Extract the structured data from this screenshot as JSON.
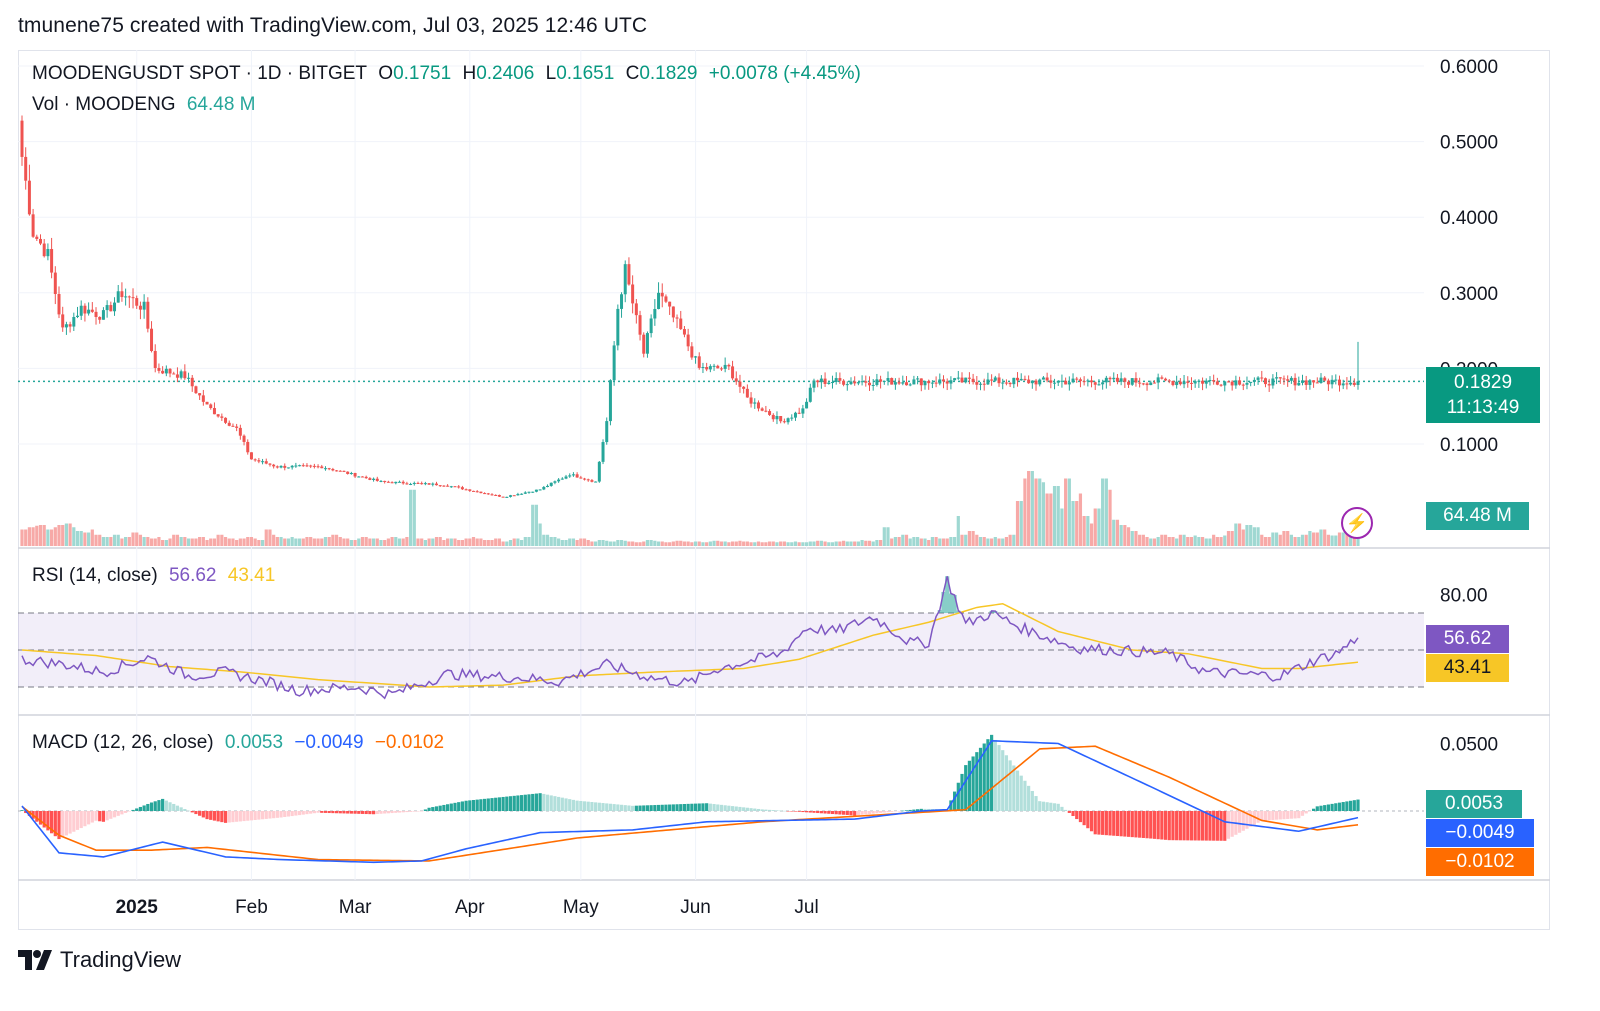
{
  "header": {
    "credit": "tmunene75 created with TradingView.com, Jul 03, 2025 12:46 UTC"
  },
  "brand": {
    "name": "TradingView"
  },
  "colors": {
    "up": "#26a69a",
    "down": "#ef5350",
    "rsi": "#7e57c2",
    "rsi_ma": "#f7c626",
    "macd": "#2962ff",
    "signal": "#ff6d00"
  },
  "price_legend": {
    "symbol": "MOODENGUSDT SPOT · 1D · BITGET",
    "o_label": "O",
    "o": "0.1751",
    "h_label": "H",
    "h": "0.2406",
    "l_label": "L",
    "l": "0.1651",
    "c_label": "C",
    "c": "0.1829",
    "change": "+0.0078 (+4.45%)"
  },
  "vol_legend": {
    "label": "Vol · MOODENG",
    "value": "64.48 M"
  },
  "rsi_legend": {
    "label": "RSI (14, close)",
    "rsi": "56.62",
    "ma": "43.41"
  },
  "macd_legend": {
    "label": "MACD (12, 26, close)",
    "hist": "0.0053",
    "macd": "−0.0049",
    "signal": "−0.0102"
  },
  "tags": {
    "price": "0.1829",
    "countdown": "11:13:49",
    "volume": "64.48 M",
    "rsi": "56.62",
    "rsi_ma": "43.41",
    "macd_hist": "0.0053",
    "macd": "−0.0049",
    "signal": "−0.0102"
  },
  "chart_data": [
    {
      "type": "candlestick",
      "title": "MOODENGUSDT SPOT · 1D · BITGET",
      "x_ticks": [
        "2025",
        "Feb",
        "Mar",
        "Apr",
        "May",
        "Jun",
        "Jul"
      ],
      "y_ticks": [
        "0.6000",
        "0.5000",
        "0.4000",
        "0.3000",
        "0.2000",
        "0.1000"
      ],
      "ylim": [
        0.0,
        0.62
      ],
      "last_price": 0.1829,
      "anchors": [
        {
          "date": "2024-12-01",
          "close": 0.48
        },
        {
          "date": "2024-12-04",
          "close": 0.38
        },
        {
          "date": "2024-12-08",
          "close": 0.35
        },
        {
          "date": "2024-12-12",
          "close": 0.25
        },
        {
          "date": "2024-12-17",
          "close": 0.28
        },
        {
          "date": "2024-12-23",
          "close": 0.27
        },
        {
          "date": "2024-12-28",
          "close": 0.3
        },
        {
          "date": "2025-01-03",
          "close": 0.28
        },
        {
          "date": "2025-01-06",
          "close": 0.2
        },
        {
          "date": "2025-01-14",
          "close": 0.19
        },
        {
          "date": "2025-01-20",
          "close": 0.15
        },
        {
          "date": "2025-01-28",
          "close": 0.12
        },
        {
          "date": "2025-02-01",
          "close": 0.08
        },
        {
          "date": "2025-02-08",
          "close": 0.07
        },
        {
          "date": "2025-02-20",
          "close": 0.07
        },
        {
          "date": "2025-03-08",
          "close": 0.05
        },
        {
          "date": "2025-03-25",
          "close": 0.046
        },
        {
          "date": "2025-04-10",
          "close": 0.03
        },
        {
          "date": "2025-04-20",
          "close": 0.04
        },
        {
          "date": "2025-04-28",
          "close": 0.06
        },
        {
          "date": "2025-05-05",
          "close": 0.05
        },
        {
          "date": "2025-05-08",
          "close": 0.13
        },
        {
          "date": "2025-05-11",
          "close": 0.28
        },
        {
          "date": "2025-05-13",
          "close": 0.33
        },
        {
          "date": "2025-05-18",
          "close": 0.22
        },
        {
          "date": "2025-05-22",
          "close": 0.3
        },
        {
          "date": "2025-05-28",
          "close": 0.25
        },
        {
          "date": "2025-06-02",
          "close": 0.2
        },
        {
          "date": "2025-06-10",
          "close": 0.2
        },
        {
          "date": "2025-06-15",
          "close": 0.16
        },
        {
          "date": "2025-06-24",
          "close": 0.13
        },
        {
          "date": "2025-06-30",
          "close": 0.145
        },
        {
          "date": "2025-07-03",
          "close": 0.1829
        }
      ]
    },
    {
      "type": "bar",
      "title": "Vol · MOODENG",
      "last_value": "64.48 M",
      "relative_heights": [
        0.22,
        0.25,
        0.27,
        0.28,
        0.22,
        0.25,
        0.28,
        0.3,
        0.25,
        0.2,
        0.18,
        0.22,
        0.15,
        0.12,
        0.12,
        0.15,
        0.1,
        0.12,
        0.18,
        0.15,
        0.12,
        0.1,
        0.12,
        0.08,
        0.1,
        0.15,
        0.12,
        0.1,
        0.1,
        0.12,
        0.08,
        0.1,
        0.15,
        0.12,
        0.1,
        0.08,
        0.1,
        0.12,
        0.1,
        0.08,
        0.22,
        0.15,
        0.12,
        0.1,
        0.12,
        0.1,
        0.1,
        0.12,
        0.1,
        0.1,
        0.12,
        0.15,
        0.12,
        0.1,
        0.08,
        0.1,
        0.12,
        0.1,
        0.1,
        0.08,
        0.1,
        0.12,
        0.1,
        0.12,
        0.75,
        0.1,
        0.08,
        0.1,
        0.12,
        0.08,
        0.1,
        0.1,
        0.08,
        0.1,
        0.12,
        0.1,
        0.08,
        0.08,
        0.1,
        0.06,
        0.08,
        0.1,
        0.08,
        0.12,
        0.55,
        0.3,
        0.15,
        0.12,
        0.1,
        0.08,
        0.1,
        0.08,
        0.1,
        0.08,
        0.06,
        0.08,
        0.07,
        0.06,
        0.08,
        0.07,
        0.06,
        0.05,
        0.06,
        0.08,
        0.07,
        0.06,
        0.05,
        0.06,
        0.07,
        0.06,
        0.05,
        0.06,
        0.05,
        0.06,
        0.07,
        0.06,
        0.05,
        0.06,
        0.07,
        0.06,
        0.05,
        0.06,
        0.05,
        0.06,
        0.05,
        0.06,
        0.05,
        0.06,
        0.05,
        0.05,
        0.06,
        0.07,
        0.06,
        0.05,
        0.06,
        0.07,
        0.06,
        0.06,
        0.08,
        0.07,
        0.06,
        0.08,
        0.25,
        0.1,
        0.12,
        0.15,
        0.1,
        0.12,
        0.1,
        0.08,
        0.12,
        0.1,
        0.1,
        0.12,
        0.4,
        0.15,
        0.2,
        0.15,
        0.12,
        0.1,
        0.12,
        0.1,
        0.12,
        0.15,
        0.6,
        0.9,
        1.0,
        0.9,
        0.85,
        0.7,
        0.8,
        0.5,
        0.9,
        0.6,
        0.7,
        0.4,
        0.3,
        0.5,
        0.9,
        0.75,
        0.35,
        0.28,
        0.25,
        0.2,
        0.15,
        0.12,
        0.1,
        0.12,
        0.15,
        0.12,
        0.1,
        0.15,
        0.12,
        0.14,
        0.12,
        0.1,
        0.15,
        0.12,
        0.14,
        0.2,
        0.3,
        0.22,
        0.28,
        0.25,
        0.15,
        0.12,
        0.18,
        0.15,
        0.2,
        0.15,
        0.12,
        0.15,
        0.2,
        0.18,
        0.22,
        0.15,
        0.14,
        0.18,
        0.22,
        0.3,
        0.45
      ]
    },
    {
      "type": "line",
      "title": "RSI (14, close)",
      "y_ticks": [
        "80.00"
      ],
      "ylim": [
        20,
        95
      ],
      "bands": [
        70,
        30
      ],
      "series": [
        {
          "name": "RSI",
          "anchors": [
            [
              0,
              45
            ],
            [
              12,
              42
            ],
            [
              22,
              38
            ],
            [
              34,
              46
            ],
            [
              45,
              36
            ],
            [
              55,
              38
            ],
            [
              66,
              33
            ],
            [
              75,
              28
            ],
            [
              90,
              30
            ],
            [
              100,
              26
            ],
            [
              115,
              37
            ],
            [
              135,
              35
            ],
            [
              145,
              33
            ],
            [
              158,
              42
            ],
            [
              170,
              35
            ],
            [
              180,
              32
            ],
            [
              188,
              40
            ],
            [
              205,
              48
            ],
            [
              212,
              62
            ],
            [
              220,
              60
            ],
            [
              230,
              68
            ],
            [
              240,
              54
            ],
            [
              245,
              54
            ],
            [
              250,
              88
            ],
            [
              255,
              64
            ],
            [
              262,
              70
            ],
            [
              270,
              62
            ],
            [
              285,
              51
            ],
            [
              295,
              50
            ],
            [
              310,
              48
            ],
            [
              320,
              38
            ],
            [
              340,
              36
            ],
            [
              350,
              45
            ],
            [
              355,
              48
            ],
            [
              361,
              56.62
            ]
          ]
        },
        {
          "name": "MA",
          "anchors": [
            [
              0,
              50
            ],
            [
              20,
              47
            ],
            [
              40,
              41
            ],
            [
              60,
              38
            ],
            [
              80,
              34
            ],
            [
              110,
              30
            ],
            [
              130,
              31
            ],
            [
              150,
              36
            ],
            [
              170,
              38
            ],
            [
              195,
              40
            ],
            [
              210,
              45
            ],
            [
              230,
              58
            ],
            [
              245,
              65
            ],
            [
              258,
              73
            ],
            [
              265,
              75
            ],
            [
              280,
              60
            ],
            [
              300,
              50
            ],
            [
              315,
              48
            ],
            [
              335,
              40
            ],
            [
              345,
              40
            ],
            [
              361,
              43.41
            ]
          ]
        }
      ]
    },
    {
      "type": "bar",
      "title": "MACD (12, 26, close)",
      "y_ticks": [
        "0.0500"
      ],
      "ylim": [
        -0.045,
        0.062
      ],
      "series": [
        {
          "name": "MACD",
          "anchors": [
            [
              0,
              0.0037
            ],
            [
              10,
              -0.031
            ],
            [
              22,
              -0.034
            ],
            [
              38,
              -0.023
            ],
            [
              55,
              -0.034
            ],
            [
              70,
              -0.036
            ],
            [
              95,
              -0.038
            ],
            [
              108,
              -0.037
            ],
            [
              120,
              -0.028
            ],
            [
              140,
              -0.016
            ],
            [
              165,
              -0.014
            ],
            [
              185,
              -0.008
            ],
            [
              225,
              -0.006
            ],
            [
              243,
              0.0
            ],
            [
              250,
              0.001
            ],
            [
              262,
              0.052
            ],
            [
              280,
              0.05
            ],
            [
              305,
              0.018
            ],
            [
              325,
              -0.008
            ],
            [
              345,
              -0.015
            ],
            [
              361,
              -0.0049
            ]
          ]
        },
        {
          "name": "Signal",
          "anchors": [
            [
              0,
              0.0033
            ],
            [
              10,
              -0.018
            ],
            [
              20,
              -0.029
            ],
            [
              35,
              -0.029
            ],
            [
              50,
              -0.027
            ],
            [
              80,
              -0.036
            ],
            [
              110,
              -0.037
            ],
            [
              150,
              -0.02
            ],
            [
              200,
              -0.008
            ],
            [
              243,
              -0.001
            ],
            [
              255,
              0.001
            ],
            [
              275,
              0.046
            ],
            [
              290,
              0.048
            ],
            [
              310,
              0.025
            ],
            [
              335,
              -0.007
            ],
            [
              350,
              -0.014
            ],
            [
              361,
              -0.0102
            ]
          ]
        },
        {
          "name": "Histogram",
          "last": 0.0053
        }
      ]
    }
  ]
}
